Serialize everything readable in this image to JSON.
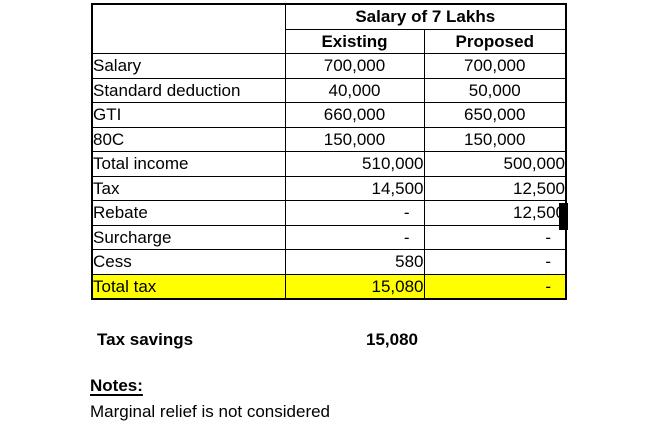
{
  "table": {
    "title": "Salary of 7 Lakhs",
    "columns": [
      "Existing",
      "Proposed"
    ],
    "rows": [
      {
        "label": "Salary",
        "existing": "700,000",
        "proposed": "700,000"
      },
      {
        "label": "Standard deduction",
        "existing": "40,000",
        "proposed": "50,000"
      },
      {
        "label": "GTI",
        "existing": "660,000",
        "proposed": "650,000"
      },
      {
        "label": "80C",
        "existing": "150,000",
        "proposed": "150,000"
      },
      {
        "label": "Total income",
        "existing": "510,000",
        "proposed": "500,000"
      },
      {
        "label": "Tax",
        "existing": "14,500",
        "proposed": "12,500"
      },
      {
        "label": "Rebate",
        "existing": "-",
        "proposed": "12,500"
      },
      {
        "label": "Surcharge",
        "existing": "-",
        "proposed": "-"
      },
      {
        "label": "Cess",
        "existing": "580",
        "proposed": "-"
      },
      {
        "label": "Total tax",
        "existing": "15,080",
        "proposed": "-"
      }
    ],
    "colors": {
      "highlight": "#FFFF00",
      "border": "#000000",
      "text": "#000000",
      "background": "#FFFFFF"
    }
  },
  "summary": {
    "label": "Tax savings",
    "value": "15,080"
  },
  "notes": {
    "heading": "Notes:",
    "text": "Marginal relief is not considered"
  }
}
